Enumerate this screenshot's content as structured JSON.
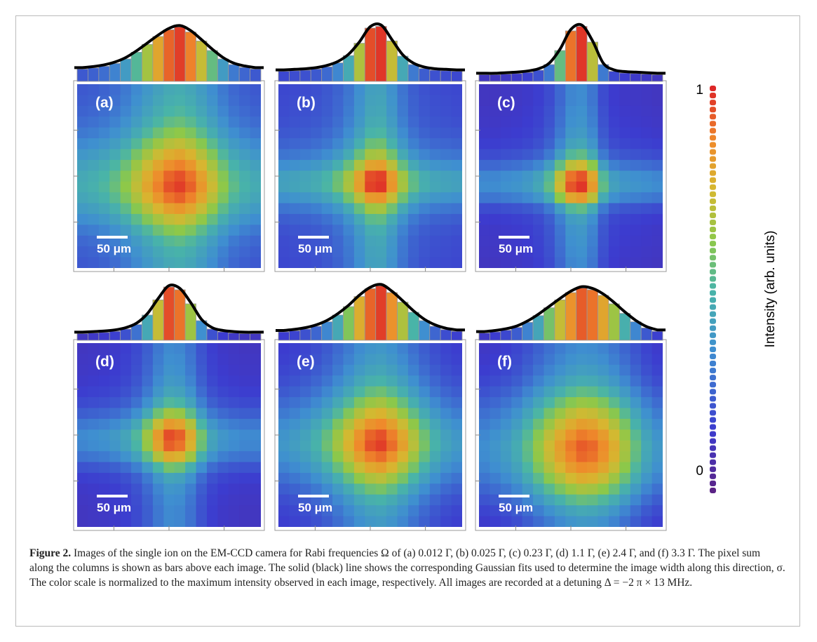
{
  "panels": [
    {
      "label": "(a)",
      "scale_bar": "50 μm",
      "column_sums": [
        0.22,
        0.24,
        0.27,
        0.32,
        0.4,
        0.52,
        0.66,
        0.8,
        0.92,
        0.97,
        0.88,
        0.72,
        0.55,
        0.4,
        0.3,
        0.25,
        0.22
      ]
    },
    {
      "label": "(b)",
      "scale_bar": "50 μm",
      "column_sums": [
        0.18,
        0.19,
        0.2,
        0.22,
        0.26,
        0.33,
        0.46,
        0.68,
        0.95,
        0.98,
        0.72,
        0.45,
        0.3,
        0.23,
        0.2,
        0.19,
        0.18
      ]
    },
    {
      "label": "(c)",
      "scale_bar": "50 μm",
      "column_sums": [
        0.12,
        0.12,
        0.13,
        0.14,
        0.16,
        0.2,
        0.3,
        0.55,
        0.9,
        0.98,
        0.7,
        0.3,
        0.18,
        0.15,
        0.14,
        0.13,
        0.12
      ]
    },
    {
      "label": "(d)",
      "scale_bar": "50 μm",
      "column_sums": [
        0.12,
        0.13,
        0.14,
        0.16,
        0.2,
        0.28,
        0.45,
        0.72,
        0.95,
        0.9,
        0.65,
        0.35,
        0.2,
        0.15,
        0.13,
        0.12,
        0.12
      ]
    },
    {
      "label": "(e)",
      "scale_bar": "50 μm",
      "column_sums": [
        0.15,
        0.17,
        0.2,
        0.25,
        0.33,
        0.45,
        0.6,
        0.78,
        0.92,
        0.97,
        0.85,
        0.68,
        0.5,
        0.35,
        0.25,
        0.19,
        0.16
      ]
    },
    {
      "label": "(f)",
      "scale_bar": "50 μm",
      "column_sums": [
        0.13,
        0.15,
        0.18,
        0.23,
        0.32,
        0.44,
        0.58,
        0.72,
        0.85,
        0.93,
        0.9,
        0.8,
        0.65,
        0.48,
        0.33,
        0.22,
        0.16
      ]
    }
  ],
  "colorbar": {
    "label": "Intensity (arb. units)",
    "ticks": [
      0,
      1
    ]
  },
  "caption": {
    "figure": "Figure 2.",
    "text": "Images of the single ion on the EM-CCD camera for Rabi frequencies Ω of (a) 0.012 Γ, (b) 0.025 Γ, (c) 0.23 Γ, (d) 1.1 Γ, (e) 2.4 Γ, and (f) 3.3 Γ. The pixel sum along the columns is shown as bars above each image. The solid (black) line shows the corresponding Gaussian fits used to determine the image width along this direction, σ. The color scale is normalized to the maximum intensity observed in each image, respectively. All images are recorded at a detuning Δ = −2 π × 13 MHz."
  }
}
